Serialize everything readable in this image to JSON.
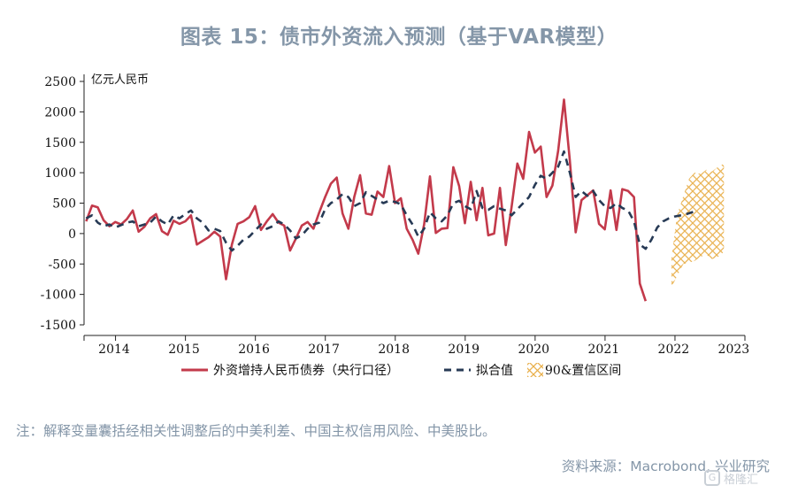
{
  "title": "图表 15：债市外资流入预测（基于VAR模型）",
  "note": "注：解释变量囊括经相关性调整后的中美利差、中国主权信用风险、中美股比。",
  "source": "资料来源：Macrobond, 兴业研究",
  "watermark": "格隆汇",
  "colors": {
    "actual": "#c33a4b",
    "fitted": "#273a55",
    "interval": "#e9b04c",
    "text": "#8496a8"
  },
  "chart_data": {
    "type": "line",
    "ylabel": "亿元人民币",
    "ylim": [
      -1500,
      2500
    ],
    "yticks": [
      2500,
      2000,
      1500,
      1000,
      500,
      0,
      -500,
      -1000,
      -1500
    ],
    "xlim": [
      2013.55,
      2023.0
    ],
    "xtick_labels": [
      {
        "label": "2014",
        "at": 2014.0
      },
      {
        "label": "2015",
        "at": 2015.0
      },
      {
        "label": "2016",
        "at": 2016.0
      },
      {
        "label": "2017",
        "at": 2017.0
      },
      {
        "label": "2018",
        "at": 2018.0
      },
      {
        "label": "2019",
        "at": 2019.0
      },
      {
        "label": "2020",
        "at": 2020.0
      },
      {
        "label": "2021",
        "at": 2021.0
      },
      {
        "label": "2022",
        "at": 2022.0
      },
      {
        "label": "2023",
        "at": 2022.78
      }
    ],
    "legend_placement": "bottom",
    "series": [
      {
        "name": "外资增持人民币债券（央行口径）",
        "style": "solid",
        "x_start": 2013.58,
        "x_step": 0.0833333,
        "values": [
          200,
          460,
          430,
          220,
          120,
          190,
          150,
          240,
          380,
          30,
          110,
          250,
          320,
          40,
          -20,
          210,
          160,
          200,
          300,
          -180,
          -120,
          -60,
          30,
          -50,
          -750,
          -180,
          160,
          200,
          270,
          450,
          60,
          200,
          320,
          180,
          130,
          -280,
          -80,
          130,
          190,
          80,
          350,
          600,
          820,
          920,
          330,
          80,
          600,
          960,
          330,
          310,
          690,
          600,
          1110,
          500,
          580,
          80,
          -100,
          -330,
          150,
          940,
          10,
          80,
          90,
          1090,
          780,
          170,
          850,
          220,
          750,
          -30,
          0,
          750,
          -190,
          430,
          1150,
          900,
          1670,
          1330,
          1430,
          600,
          790,
          1360,
          2200,
          1200,
          20,
          550,
          630,
          710,
          160,
          70,
          710,
          60,
          730,
          700,
          600,
          -820,
          -1110
        ]
      },
      {
        "name": "拟合值",
        "style": "dashed",
        "x_start": 2013.58,
        "x_step": 0.0833333,
        "values": [
          250,
          300,
          180,
          120,
          150,
          100,
          140,
          180,
          200,
          120,
          150,
          180,
          280,
          200,
          150,
          300,
          250,
          320,
          380,
          250,
          180,
          50,
          80,
          40,
          -150,
          -280,
          -200,
          -100,
          -50,
          50,
          150,
          80,
          120,
          200,
          150,
          50,
          -80,
          -30,
          80,
          150,
          180,
          400,
          500,
          560,
          650,
          600,
          450,
          500,
          680,
          620,
          560,
          500,
          540,
          520,
          480,
          300,
          150,
          -50,
          80,
          350,
          250,
          200,
          300,
          500,
          540,
          450,
          400,
          700,
          420,
          390,
          450,
          410,
          380,
          300,
          400,
          500,
          600,
          800,
          950,
          900,
          1000,
          1100,
          1350,
          1000,
          600,
          700,
          620,
          700,
          550,
          450,
          420,
          500,
          420,
          380,
          200,
          -180,
          -250,
          -100,
          100,
          200,
          250,
          280,
          300,
          320,
          350,
          380
        ]
      }
    ],
    "interval": {
      "name": "90&置信区间",
      "x": [
        2021.95,
        2022.03,
        2022.12,
        2022.2,
        2022.28,
        2022.37,
        2022.45,
        2022.53,
        2022.62,
        2022.7
      ],
      "upper": [
        -400,
        300,
        620,
        900,
        1000,
        980,
        1050,
        1020,
        1100,
        1150
      ],
      "lower": [
        -880,
        -700,
        -500,
        -480,
        -450,
        -380,
        -350,
        -420,
        -380,
        -300
      ]
    }
  }
}
